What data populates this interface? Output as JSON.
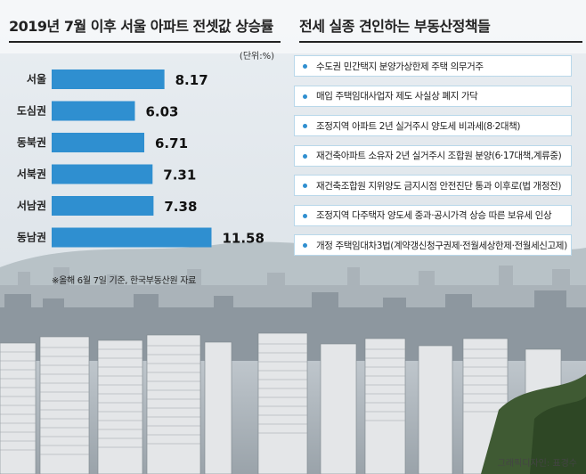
{
  "chart_data": {
    "type": "bar",
    "orientation": "horizontal",
    "title": "2019년 7월 이후 서울 아파트 전셋값 상승률",
    "unit": "(단위:%)",
    "categories": [
      "서울",
      "도심권",
      "동북권",
      "서북권",
      "서남권",
      "동남권"
    ],
    "values": [
      8.17,
      6.03,
      6.71,
      7.31,
      7.38,
      11.58
    ],
    "value_labels": [
      "8.17",
      "6.03",
      "6.71",
      "7.31",
      "7.38",
      "11.58"
    ],
    "xlim": [
      0,
      12
    ],
    "grid": false,
    "bar_color": "#2f8fd0",
    "note": "※올해 6월 7일 기준, 한국부동산원 자료"
  },
  "policies": {
    "title": "전세 실종 견인하는 부동산정책들",
    "items": [
      "수도권 민간택지 분양가상한제 주택 의무거주",
      "매입 주택임대사업자 제도 사실상 폐지 가닥",
      "조정지역 아파트 2년 실거주시 양도세 비과세(8·2대책)",
      "재건축아파트 소유자 2년 실거주시 조합원 분양(6·17대책,계류중)",
      "재건축조합원 지위양도 금지시점 안전진단 통과 이후로(법 개정전)",
      "조정지역 다주택자 양도세 중과·공시가격 상승 따른 보유세 인상",
      "개정 주택임대차3법(계약갱신청구권제·전월세상한제·전월세신고제)"
    ],
    "bullet_color": "#2f8fd0"
  },
  "credit": "그래픽디자인: 표경수"
}
